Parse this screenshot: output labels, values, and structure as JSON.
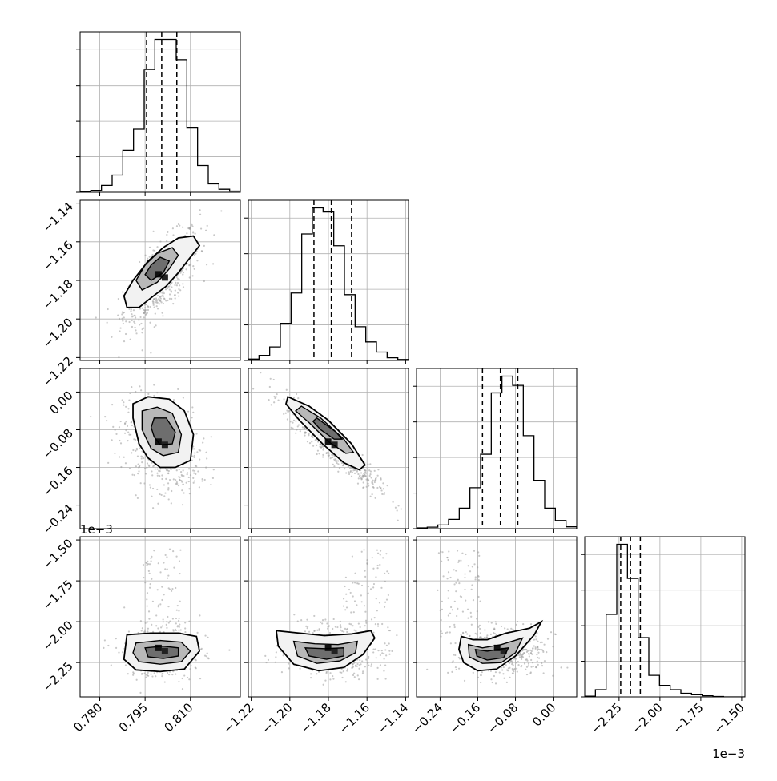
{
  "chart_data": {
    "type": "corner",
    "style": {
      "grid": true,
      "colors": {
        "axis": "#000000",
        "grid": "#b0b0b0",
        "points": "#9a9a9a",
        "contour": "#000000"
      }
    },
    "parameters": [
      {
        "range": [
          0.7735,
          0.8265
        ],
        "ticks": [
          0.78,
          0.795,
          0.81
        ],
        "tick_labels": [
          "0.780",
          "0.795",
          "0.810"
        ],
        "quantiles": [
          0.7955,
          0.8005,
          0.8055
        ],
        "hist_counts": [
          2,
          5,
          18,
          45,
          110,
          165,
          320,
          398,
          398,
          345,
          168,
          70,
          22,
          8,
          3
        ]
      },
      {
        "range": [
          -1.2215,
          -1.1385
        ],
        "ticks": [
          -1.22,
          -1.2,
          -1.18,
          -1.16,
          -1.14
        ],
        "tick_labels": [
          "−1.22",
          "−1.20",
          "−1.18",
          "−1.16",
          "−1.14"
        ],
        "quantiles": [
          -1.1875,
          -1.1785,
          -1.168
        ],
        "hist_counts": [
          4,
          15,
          40,
          110,
          200,
          375,
          452,
          440,
          340,
          195,
          100,
          55,
          25,
          8,
          3
        ]
      },
      {
        "range": [
          -0.29,
          0.05
        ],
        "ticks": [
          -0.24,
          -0.16,
          -0.08,
          0.0
        ],
        "tick_labels": [
          "−0.24",
          "−0.16",
          "−0.08",
          "0.00"
        ],
        "quantiles": [
          -0.15,
          -0.112,
          -0.075
        ],
        "hist_counts": [
          2,
          4,
          10,
          25,
          55,
          110,
          200,
          365,
          410,
          385,
          250,
          130,
          55,
          22,
          5
        ]
      },
      {
        "range": [
          -2.46,
          -1.48
        ],
        "ticks": [
          -2.25,
          -2.0,
          -1.75,
          -1.5
        ],
        "tick_labels": [
          "−2.25",
          "−2.00",
          "−1.75",
          "−1.50"
        ],
        "offset_label": "1e−3",
        "quantiles": [
          -2.24,
          -2.18,
          -2.12
        ],
        "hist_counts": [
          2,
          20,
          230,
          425,
          330,
          165,
          60,
          32,
          20,
          10,
          6,
          3,
          1,
          0,
          0
        ]
      }
    ],
    "pairs": [
      {
        "row": 1,
        "col": 0,
        "rho": 0.72,
        "contours": [
          [
            [
              0.793,
              -1.194
            ],
            [
              0.797,
              -1.189
            ],
            [
              0.802,
              -1.183
            ],
            [
              0.806,
              -1.176
            ],
            [
              0.81,
              -1.168
            ],
            [
              0.813,
              -1.162
            ],
            [
              0.811,
              -1.157
            ],
            [
              0.806,
              -1.158
            ],
            [
              0.801,
              -1.163
            ],
            [
              0.796,
              -1.17
            ],
            [
              0.791,
              -1.18
            ],
            [
              0.788,
              -1.188
            ],
            [
              0.789,
              -1.194
            ]
          ],
          [
            [
              0.794,
              -1.185
            ],
            [
              0.799,
              -1.181
            ],
            [
              0.803,
              -1.174
            ],
            [
              0.806,
              -1.167
            ],
            [
              0.804,
              -1.163
            ],
            [
              0.799,
              -1.166
            ],
            [
              0.795,
              -1.172
            ],
            [
              0.792,
              -1.18
            ]
          ],
          [
            [
              0.797,
              -1.18
            ],
            [
              0.801,
              -1.176
            ],
            [
              0.803,
              -1.17
            ],
            [
              0.8,
              -1.168
            ],
            [
              0.797,
              -1.172
            ],
            [
              0.795,
              -1.177
            ]
          ]
        ]
      },
      {
        "row": 2,
        "col": 0,
        "rho": -0.3,
        "contours": [
          [
            [
              0.791,
              -0.055
            ],
            [
              0.791,
              -0.025
            ],
            [
              0.796,
              -0.01
            ],
            [
              0.803,
              -0.015
            ],
            [
              0.808,
              -0.04
            ],
            [
              0.811,
              -0.09
            ],
            [
              0.81,
              -0.145
            ],
            [
              0.805,
              -0.16
            ],
            [
              0.8,
              -0.16
            ],
            [
              0.796,
              -0.14
            ],
            [
              0.793,
              -0.11
            ]
          ],
          [
            [
              0.794,
              -0.08
            ],
            [
              0.794,
              -0.04
            ],
            [
              0.799,
              -0.032
            ],
            [
              0.804,
              -0.045
            ],
            [
              0.807,
              -0.09
            ],
            [
              0.806,
              -0.128
            ],
            [
              0.801,
              -0.135
            ],
            [
              0.797,
              -0.12
            ]
          ],
          [
            [
              0.797,
              -0.075
            ],
            [
              0.798,
              -0.055
            ],
            [
              0.802,
              -0.055
            ],
            [
              0.805,
              -0.085
            ],
            [
              0.804,
              -0.11
            ],
            [
              0.8,
              -0.112
            ],
            [
              0.798,
              -0.095
            ]
          ]
        ]
      },
      {
        "row": 2,
        "col": 1,
        "rho": -0.93,
        "contours": [
          [
            [
              -1.201,
              -0.01
            ],
            [
              -1.19,
              -0.03
            ],
            [
              -1.18,
              -0.06
            ],
            [
              -1.168,
              -0.11
            ],
            [
              -1.161,
              -0.155
            ],
            [
              -1.164,
              -0.165
            ],
            [
              -1.172,
              -0.15
            ],
            [
              -1.183,
              -0.11
            ],
            [
              -1.195,
              -0.06
            ],
            [
              -1.202,
              -0.025
            ]
          ],
          [
            [
              -1.194,
              -0.03
            ],
            [
              -1.184,
              -0.055
            ],
            [
              -1.172,
              -0.1
            ],
            [
              -1.167,
              -0.128
            ],
            [
              -1.171,
              -0.13
            ],
            [
              -1.18,
              -0.105
            ],
            [
              -1.19,
              -0.065
            ],
            [
              -1.197,
              -0.04
            ]
          ],
          [
            [
              -1.186,
              -0.055
            ],
            [
              -1.176,
              -0.085
            ],
            [
              -1.173,
              -0.1
            ],
            [
              -1.177,
              -0.1
            ],
            [
              -1.184,
              -0.08
            ],
            [
              -1.188,
              -0.062
            ]
          ]
        ]
      },
      {
        "row": 3,
        "col": 0,
        "rho": 0,
        "contours": [
          [
            [
              0.789,
              -2.08
            ],
            [
              0.797,
              -2.07
            ],
            [
              0.806,
              -2.07
            ],
            [
              0.812,
              -2.09
            ],
            [
              0.813,
              -2.18
            ],
            [
              0.808,
              -2.29
            ],
            [
              0.8,
              -2.305
            ],
            [
              0.792,
              -2.295
            ],
            [
              0.788,
              -2.23
            ]
          ],
          [
            [
              0.792,
              -2.13
            ],
            [
              0.8,
              -2.115
            ],
            [
              0.807,
              -2.125
            ],
            [
              0.81,
              -2.18
            ],
            [
              0.807,
              -2.245
            ],
            [
              0.8,
              -2.26
            ],
            [
              0.793,
              -2.245
            ],
            [
              0.791,
              -2.19
            ]
          ],
          [
            [
              0.795,
              -2.16
            ],
            [
              0.801,
              -2.15
            ],
            [
              0.806,
              -2.16
            ],
            [
              0.806,
              -2.21
            ],
            [
              0.801,
              -2.225
            ],
            [
              0.796,
              -2.215
            ]
          ]
        ]
      },
      {
        "row": 3,
        "col": 1,
        "rho": 0,
        "contours": [
          [
            [
              -1.207,
              -2.055
            ],
            [
              -1.195,
              -2.07
            ],
            [
              -1.182,
              -2.085
            ],
            [
              -1.168,
              -2.075
            ],
            [
              -1.158,
              -2.055
            ],
            [
              -1.156,
              -2.1
            ],
            [
              -1.162,
              -2.2
            ],
            [
              -1.172,
              -2.28
            ],
            [
              -1.185,
              -2.3
            ],
            [
              -1.198,
              -2.26
            ],
            [
              -1.206,
              -2.15
            ]
          ],
          [
            [
              -1.198,
              -2.12
            ],
            [
              -1.187,
              -2.135
            ],
            [
              -1.175,
              -2.14
            ],
            [
              -1.165,
              -2.12
            ],
            [
              -1.166,
              -2.19
            ],
            [
              -1.174,
              -2.24
            ],
            [
              -1.186,
              -2.255
            ],
            [
              -1.196,
              -2.21
            ]
          ],
          [
            [
              -1.192,
              -2.16
            ],
            [
              -1.182,
              -2.165
            ],
            [
              -1.172,
              -2.16
            ],
            [
              -1.172,
              -2.21
            ],
            [
              -1.181,
              -2.23
            ],
            [
              -1.19,
              -2.21
            ]
          ]
        ]
      },
      {
        "row": 3,
        "col": 2,
        "rho": 0,
        "contours": [
          [
            [
              -0.195,
              -2.09
            ],
            [
              -0.17,
              -2.11
            ],
            [
              -0.14,
              -2.11
            ],
            [
              -0.1,
              -2.07
            ],
            [
              -0.05,
              -2.04
            ],
            [
              -0.025,
              -2.0
            ],
            [
              -0.04,
              -2.08
            ],
            [
              -0.08,
              -2.21
            ],
            [
              -0.12,
              -2.29
            ],
            [
              -0.16,
              -2.3
            ],
            [
              -0.19,
              -2.25
            ],
            [
              -0.2,
              -2.17
            ]
          ],
          [
            [
              -0.18,
              -2.14
            ],
            [
              -0.15,
              -2.16
            ],
            [
              -0.11,
              -2.14
            ],
            [
              -0.065,
              -2.1
            ],
            [
              -0.08,
              -2.19
            ],
            [
              -0.11,
              -2.25
            ],
            [
              -0.15,
              -2.255
            ],
            [
              -0.178,
              -2.215
            ]
          ],
          [
            [
              -0.165,
              -2.17
            ],
            [
              -0.14,
              -2.18
            ],
            [
              -0.095,
              -2.16
            ],
            [
              -0.105,
              -2.22
            ],
            [
              -0.14,
              -2.235
            ],
            [
              -0.162,
              -2.21
            ]
          ]
        ]
      }
    ]
  }
}
